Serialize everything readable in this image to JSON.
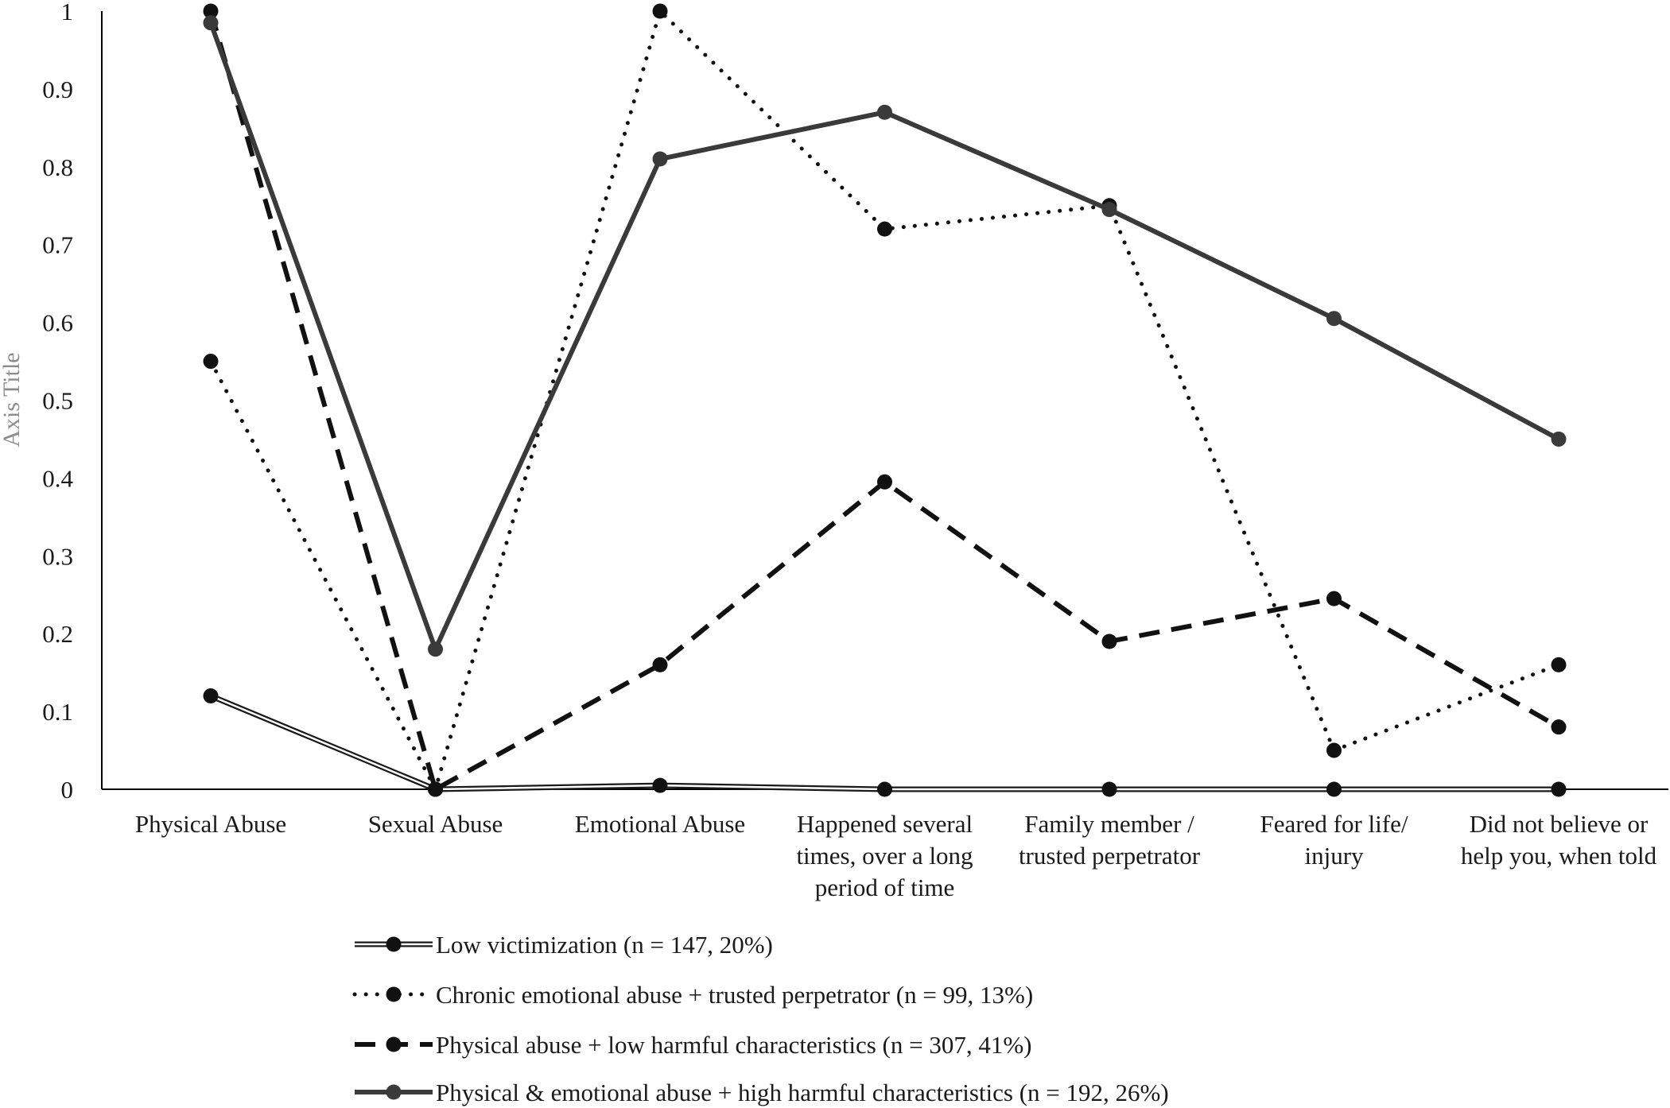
{
  "chart_data": {
    "type": "line",
    "ylabel": "Axis Title",
    "xlabel": "",
    "ylim": [
      0,
      1
    ],
    "yticks": [
      0,
      0.1,
      0.2,
      0.3,
      0.4,
      0.5,
      0.6,
      0.7,
      0.8,
      0.9,
      1
    ],
    "ytick_labels": [
      "0",
      "0.1",
      "0.2",
      "0.3",
      "0.4",
      "0.5",
      "0.6",
      "0.7",
      "0.8",
      "0.9",
      "1"
    ],
    "grid": false,
    "legend_position": "bottom",
    "categories": [
      [
        "Physical Abuse"
      ],
      [
        "Sexual Abuse"
      ],
      [
        "Emotional Abuse"
      ],
      [
        "Happened several",
        "times, over a long",
        "period of time"
      ],
      [
        "Family member /",
        "trusted perpetrator"
      ],
      [
        "Feared for life/",
        "injury"
      ],
      [
        "Did not believe or",
        "help you, when told"
      ]
    ],
    "series": [
      {
        "name": "Low victimization (n = 147, 20%)",
        "style": "double",
        "color": "#1a1a1a",
        "values": [
          0.12,
          0.0,
          0.005,
          0.0,
          0.0,
          0.0,
          0.0
        ]
      },
      {
        "name": "Chronic emotional abuse + trusted perpetrator (n = 99, 13%)",
        "style": "dotted",
        "color": "#111111",
        "values": [
          0.55,
          0.0,
          1.0,
          0.72,
          0.75,
          0.05,
          0.16
        ]
      },
      {
        "name": "Physical abuse + low harmful characteristics (n = 307, 41%)",
        "style": "dashed",
        "color": "#111111",
        "values": [
          1.0,
          0.0,
          0.16,
          0.395,
          0.19,
          0.245,
          0.08
        ]
      },
      {
        "name": "Physical & emotional abuse + high harmful characteristics (n = 192, 26%)",
        "style": "solid",
        "color": "#3a3a3a",
        "values": [
          0.985,
          0.18,
          0.81,
          0.87,
          0.745,
          0.605,
          0.45
        ]
      }
    ]
  }
}
